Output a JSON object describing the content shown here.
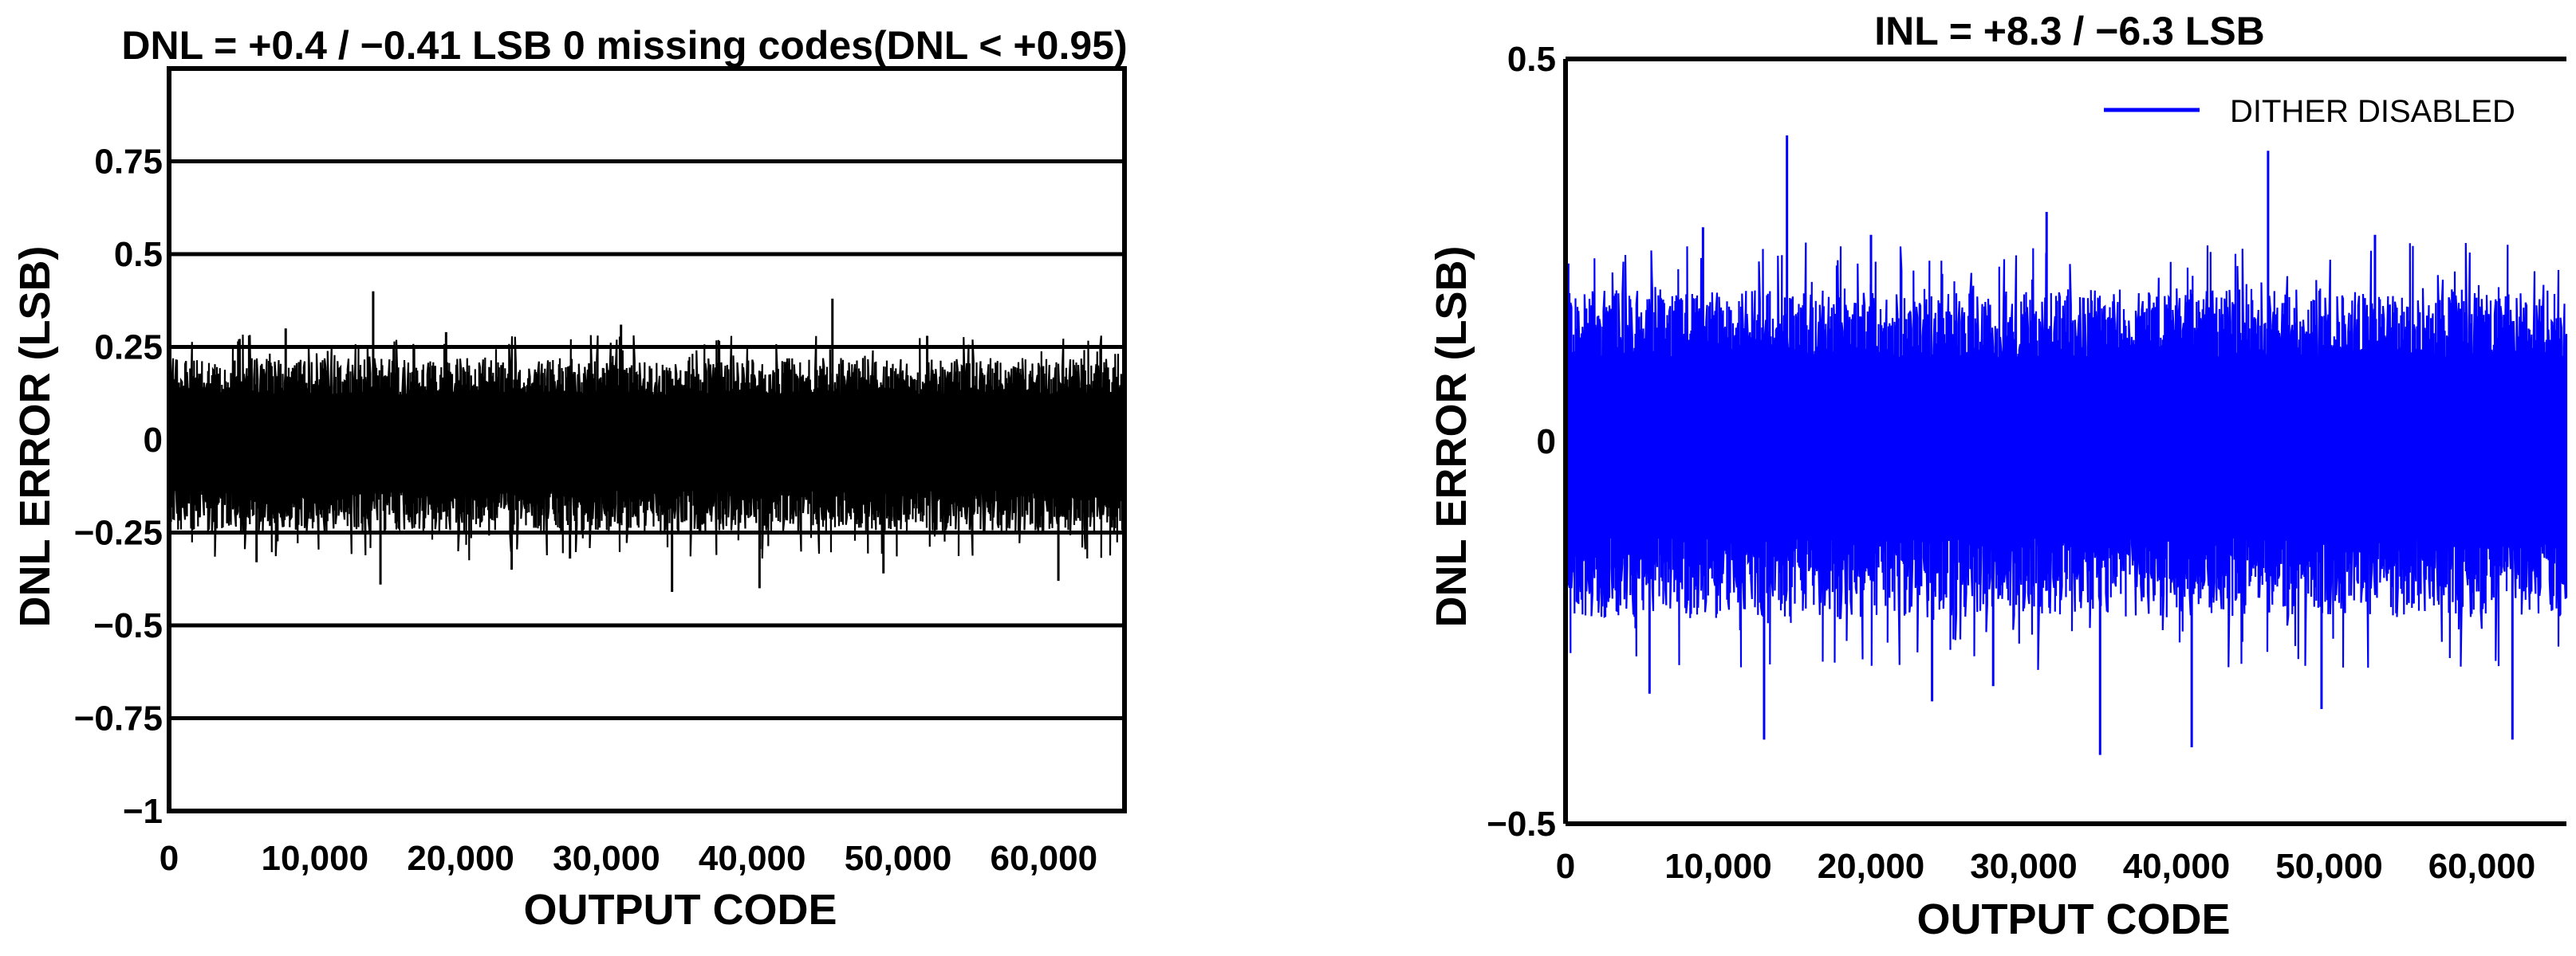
{
  "chart_data": [
    {
      "type": "line",
      "title": "DNL = +0.4 / −0.41 LSB 0 missing codes(DNL < +0.95)",
      "xlabel": "OUTPUT CODE",
      "ylabel": "DNL ERROR (LSB)",
      "xlim": [
        0,
        65535
      ],
      "ylim": [
        -1,
        1
      ],
      "grid": "horizontal",
      "x_ticks": [
        {
          "value": 0,
          "label": "0"
        },
        {
          "value": 10000,
          "label": "10,000"
        },
        {
          "value": 20000,
          "label": "20,000"
        },
        {
          "value": 30000,
          "label": "30,000"
        },
        {
          "value": 40000,
          "label": "40,000"
        },
        {
          "value": 50000,
          "label": "50,000"
        },
        {
          "value": 60000,
          "label": "60,000"
        }
      ],
      "y_ticks": [
        {
          "value": 0.75,
          "label": "0.75"
        },
        {
          "value": 0.5,
          "label": "0.5"
        },
        {
          "value": 0.25,
          "label": "0.25"
        },
        {
          "value": 0,
          "label": "0"
        },
        {
          "value": -0.25,
          "label": "−0.25"
        },
        {
          "value": -0.5,
          "label": "−0.5"
        },
        {
          "value": -0.75,
          "label": "−0.75"
        },
        {
          "value": -1,
          "label": "−1"
        }
      ],
      "gridlines": [
        0.75,
        0.5,
        0.25,
        -0.25,
        -0.5,
        -0.75
      ],
      "color": "#000000",
      "series": [
        {
          "typical_max": 0.22,
          "typical_min": -0.25,
          "peak_max": 0.4,
          "peak_min": -0.41,
          "spikes": [
            {
              "x": 14000,
              "y": 0.4
            },
            {
              "x": 45500,
              "y": 0.38
            },
            {
              "x": 8000,
              "y": 0.3
            },
            {
              "x": 31000,
              "y": 0.31
            },
            {
              "x": 19000,
              "y": 0.29
            },
            {
              "x": 52000,
              "y": 0.28
            },
            {
              "x": 34500,
              "y": -0.41
            },
            {
              "x": 40500,
              "y": -0.4
            },
            {
              "x": 14500,
              "y": -0.39
            },
            {
              "x": 61000,
              "y": -0.38
            },
            {
              "x": 6000,
              "y": -0.33
            },
            {
              "x": 23500,
              "y": -0.35
            },
            {
              "x": 49000,
              "y": -0.36
            },
            {
              "x": 27500,
              "y": -0.32
            }
          ]
        }
      ]
    },
    {
      "type": "line",
      "title": "INL = +8.3 / −6.3 LSB",
      "xlabel": "OUTPUT CODE",
      "ylabel": "DNL ERROR (LSB)",
      "xlim": [
        0,
        65535
      ],
      "ylim": [
        -0.5,
        0.5
      ],
      "grid": "none",
      "legend_position": "top-right",
      "x_ticks": [
        {
          "value": 0,
          "label": "0"
        },
        {
          "value": 10000,
          "label": "10,000"
        },
        {
          "value": 20000,
          "label": "20,000"
        },
        {
          "value": 30000,
          "label": "30,000"
        },
        {
          "value": 40000,
          "label": "40,000"
        },
        {
          "value": 50000,
          "label": "50,000"
        },
        {
          "value": 60000,
          "label": "60,000"
        }
      ],
      "y_ticks": [
        {
          "value": 0.5,
          "label": "0.5"
        },
        {
          "value": 0,
          "label": "0"
        },
        {
          "value": -0.5,
          "label": "−0.5"
        }
      ],
      "color": "#0000ff",
      "series": [
        {
          "name": "DITHER DISABLED",
          "typical_max": 0.2,
          "typical_min": -0.23,
          "peak_max": 0.4,
          "peak_min": -0.41,
          "spikes": [
            {
              "x": 14500,
              "y": 0.4
            },
            {
              "x": 46000,
              "y": 0.38
            },
            {
              "x": 9000,
              "y": 0.28
            },
            {
              "x": 31500,
              "y": 0.3
            },
            {
              "x": 20000,
              "y": 0.27
            },
            {
              "x": 53000,
              "y": 0.27
            },
            {
              "x": 35000,
              "y": -0.41
            },
            {
              "x": 41000,
              "y": -0.4
            },
            {
              "x": 13000,
              "y": -0.39
            },
            {
              "x": 62000,
              "y": -0.39
            },
            {
              "x": 5500,
              "y": -0.33
            },
            {
              "x": 24000,
              "y": -0.34
            },
            {
              "x": 49500,
              "y": -0.35
            },
            {
              "x": 28000,
              "y": -0.32
            }
          ]
        }
      ]
    }
  ]
}
